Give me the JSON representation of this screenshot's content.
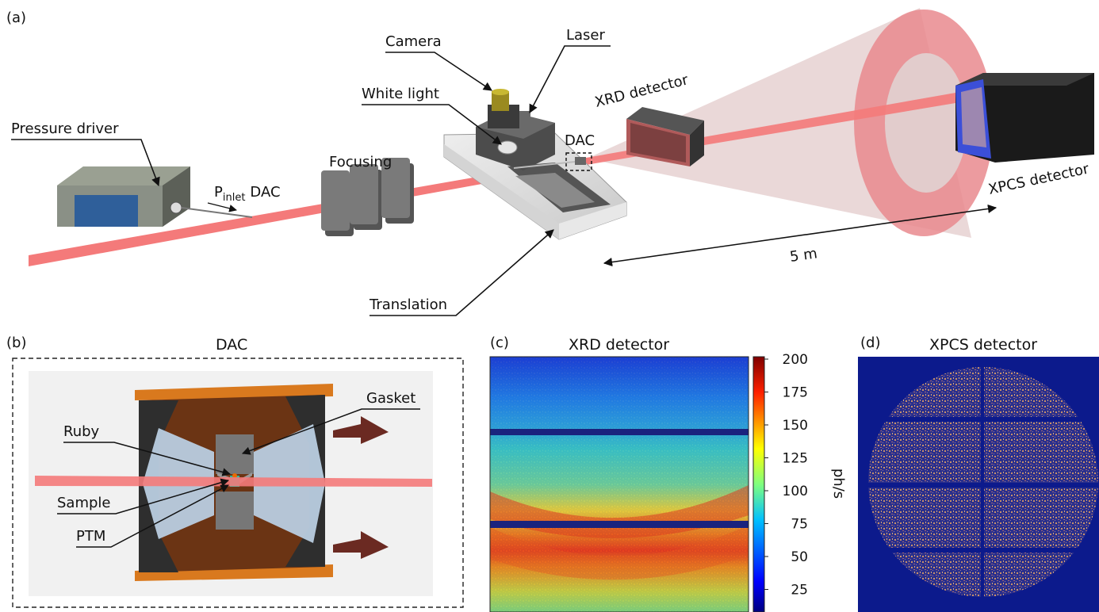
{
  "panels": {
    "a": "(a)",
    "b": "(b)",
    "c": "(c)",
    "d": "(d)"
  },
  "setup": {
    "pressure_driver": "Pressure driver",
    "p_inlet_main": "P",
    "p_inlet_sub": "inlet",
    "p_inlet_dac": "DAC",
    "focusing": "Focusing",
    "camera": "Camera",
    "white_light": "White light",
    "laser": "Laser",
    "dac": "DAC",
    "xrd_detector": "XRD detector",
    "xpcs_detector": "XPCS detector",
    "translation": "Translation",
    "distance": "5 m"
  },
  "dac_detail": {
    "title": "DAC",
    "gasket": "Gasket",
    "ruby": "Ruby",
    "sample": "Sample",
    "ptm": "PTM"
  },
  "xrd": {
    "title": "XRD detector",
    "colorbar_label": "ph/s",
    "colorbar_ticks": [
      "200",
      "175",
      "150",
      "125",
      "100",
      "75",
      "50",
      "25"
    ],
    "colormap": [
      "#00007f",
      "#0000ff",
      "#007fff",
      "#00ffff",
      "#7fff7f",
      "#ffff00",
      "#ff7f00",
      "#ff0000",
      "#7f0000"
    ]
  },
  "xpcs": {
    "title": "XPCS detector",
    "background_color": "#0c1a8c",
    "speckle_color": "#c08a6a"
  },
  "colors": {
    "beam": "#f47a7a",
    "cone": "#d9b8b8",
    "ring": "#e98a8e"
  }
}
